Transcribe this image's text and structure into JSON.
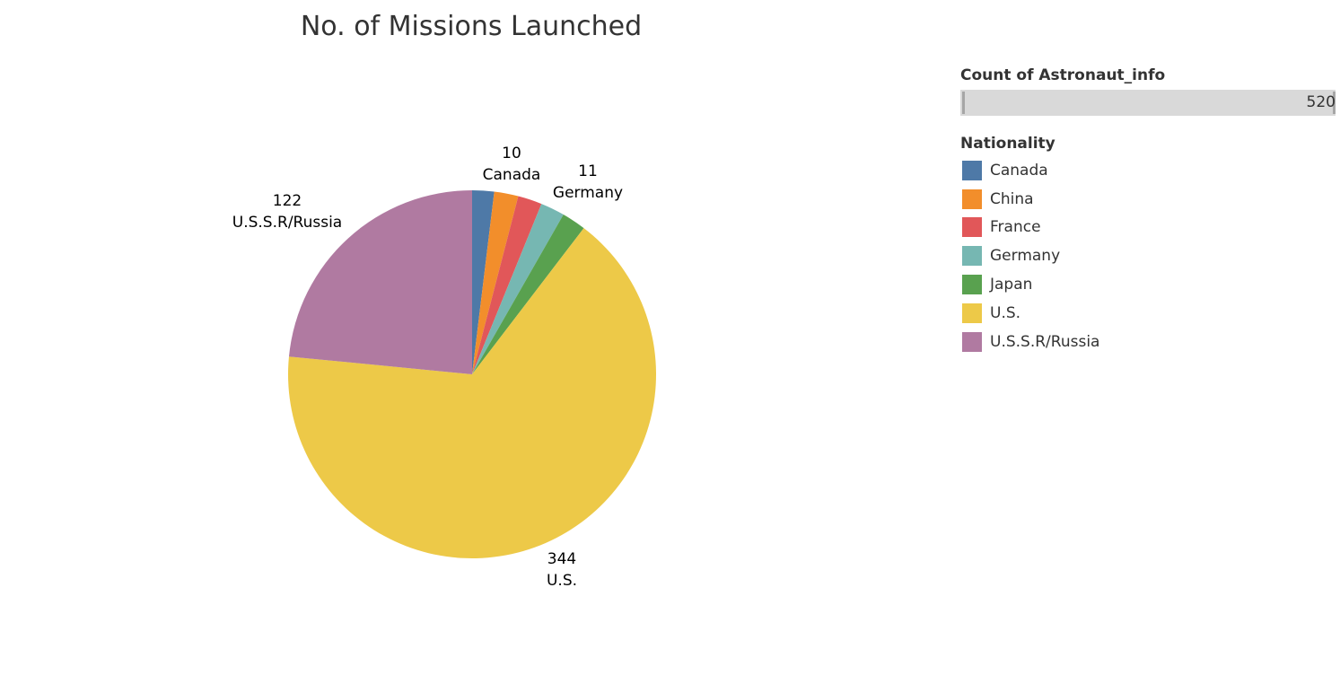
{
  "chart_data": {
    "type": "pie",
    "title": "No. of Missions Launched",
    "categories": [
      "Canada",
      "China",
      "France",
      "Germany",
      "Japan",
      "U.S.",
      "U.S.S.R/Russia"
    ],
    "values": [
      10,
      11,
      11,
      11,
      11,
      344,
      122
    ],
    "colors": [
      "#4e79a7",
      "#f28e2b",
      "#e15759",
      "#76b7b2",
      "#59a14f",
      "#edc948",
      "#b07aa1"
    ],
    "slice_labels": [
      {
        "category": "Canada",
        "value": "10",
        "name": "Canada"
      },
      {
        "category": "Germany",
        "value": "11",
        "name": "Germany"
      },
      {
        "category": "U.S.",
        "value": "344",
        "name": "U.S."
      },
      {
        "category": "U.S.S.R/Russia",
        "value": "122",
        "name": "U.S.S.R/Russia"
      }
    ],
    "start_angle_deg": 0,
    "direction": "clockwise"
  },
  "size_legend": {
    "title": "Count of Astronaut_info",
    "max_value": "520"
  },
  "color_legend": {
    "title": "Nationality",
    "items": [
      {
        "label": "Canada",
        "color": "#4e79a7"
      },
      {
        "label": "China",
        "color": "#f28e2b"
      },
      {
        "label": "France",
        "color": "#e15759"
      },
      {
        "label": "Germany",
        "color": "#76b7b2"
      },
      {
        "label": "Japan",
        "color": "#59a14f"
      },
      {
        "label": "U.S.",
        "color": "#edc948"
      },
      {
        "label": "U.S.S.R/Russia",
        "color": "#b07aa1"
      }
    ]
  }
}
